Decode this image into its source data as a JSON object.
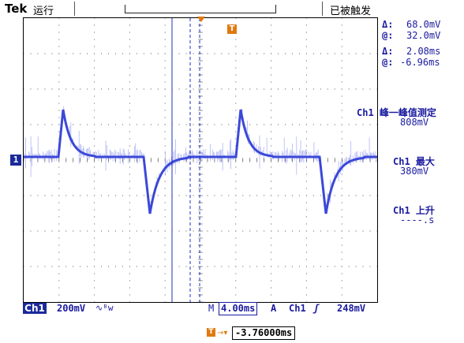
{
  "header": {
    "brand": "Tek",
    "run_status": "运行",
    "trigger_state": "已被触发"
  },
  "markers": {
    "channel": "1",
    "trigger": "T"
  },
  "cursor_readout": {
    "amp_delta_symbol": "Δ:",
    "amp_delta": "68.0mV",
    "amp_at_symbol": "@:",
    "amp_at": "32.0mV",
    "time_delta_symbol": "Δ:",
    "time_delta": "2.08ms",
    "time_at_symbol": "@:",
    "time_at": "-6.96ms"
  },
  "measurements": [
    {
      "label": "Ch1 峰一峰值测定",
      "value": "808mV"
    },
    {
      "label": "Ch1 最大",
      "value": "380mV"
    },
    {
      "label": "Ch1 上升",
      "value": "----.s"
    }
  ],
  "bottom": {
    "channel": "Ch1",
    "volts_div": "200mV",
    "coupling_icon": "∿ᴮw",
    "m_label": "M",
    "time_div": "4.00ms",
    "trig_mode": "A",
    "trig_source": "Ch1",
    "trig_slope": "ʃ",
    "trig_level": "248mV"
  },
  "delay": {
    "arrow": "→▾",
    "value": "-3.76000ms"
  },
  "colors": {
    "trace": "#3b48d8",
    "trace_noise": "#8f98f0",
    "cursor": "#2230c0",
    "trigger": "#e07a10",
    "grid": "#555555"
  }
}
